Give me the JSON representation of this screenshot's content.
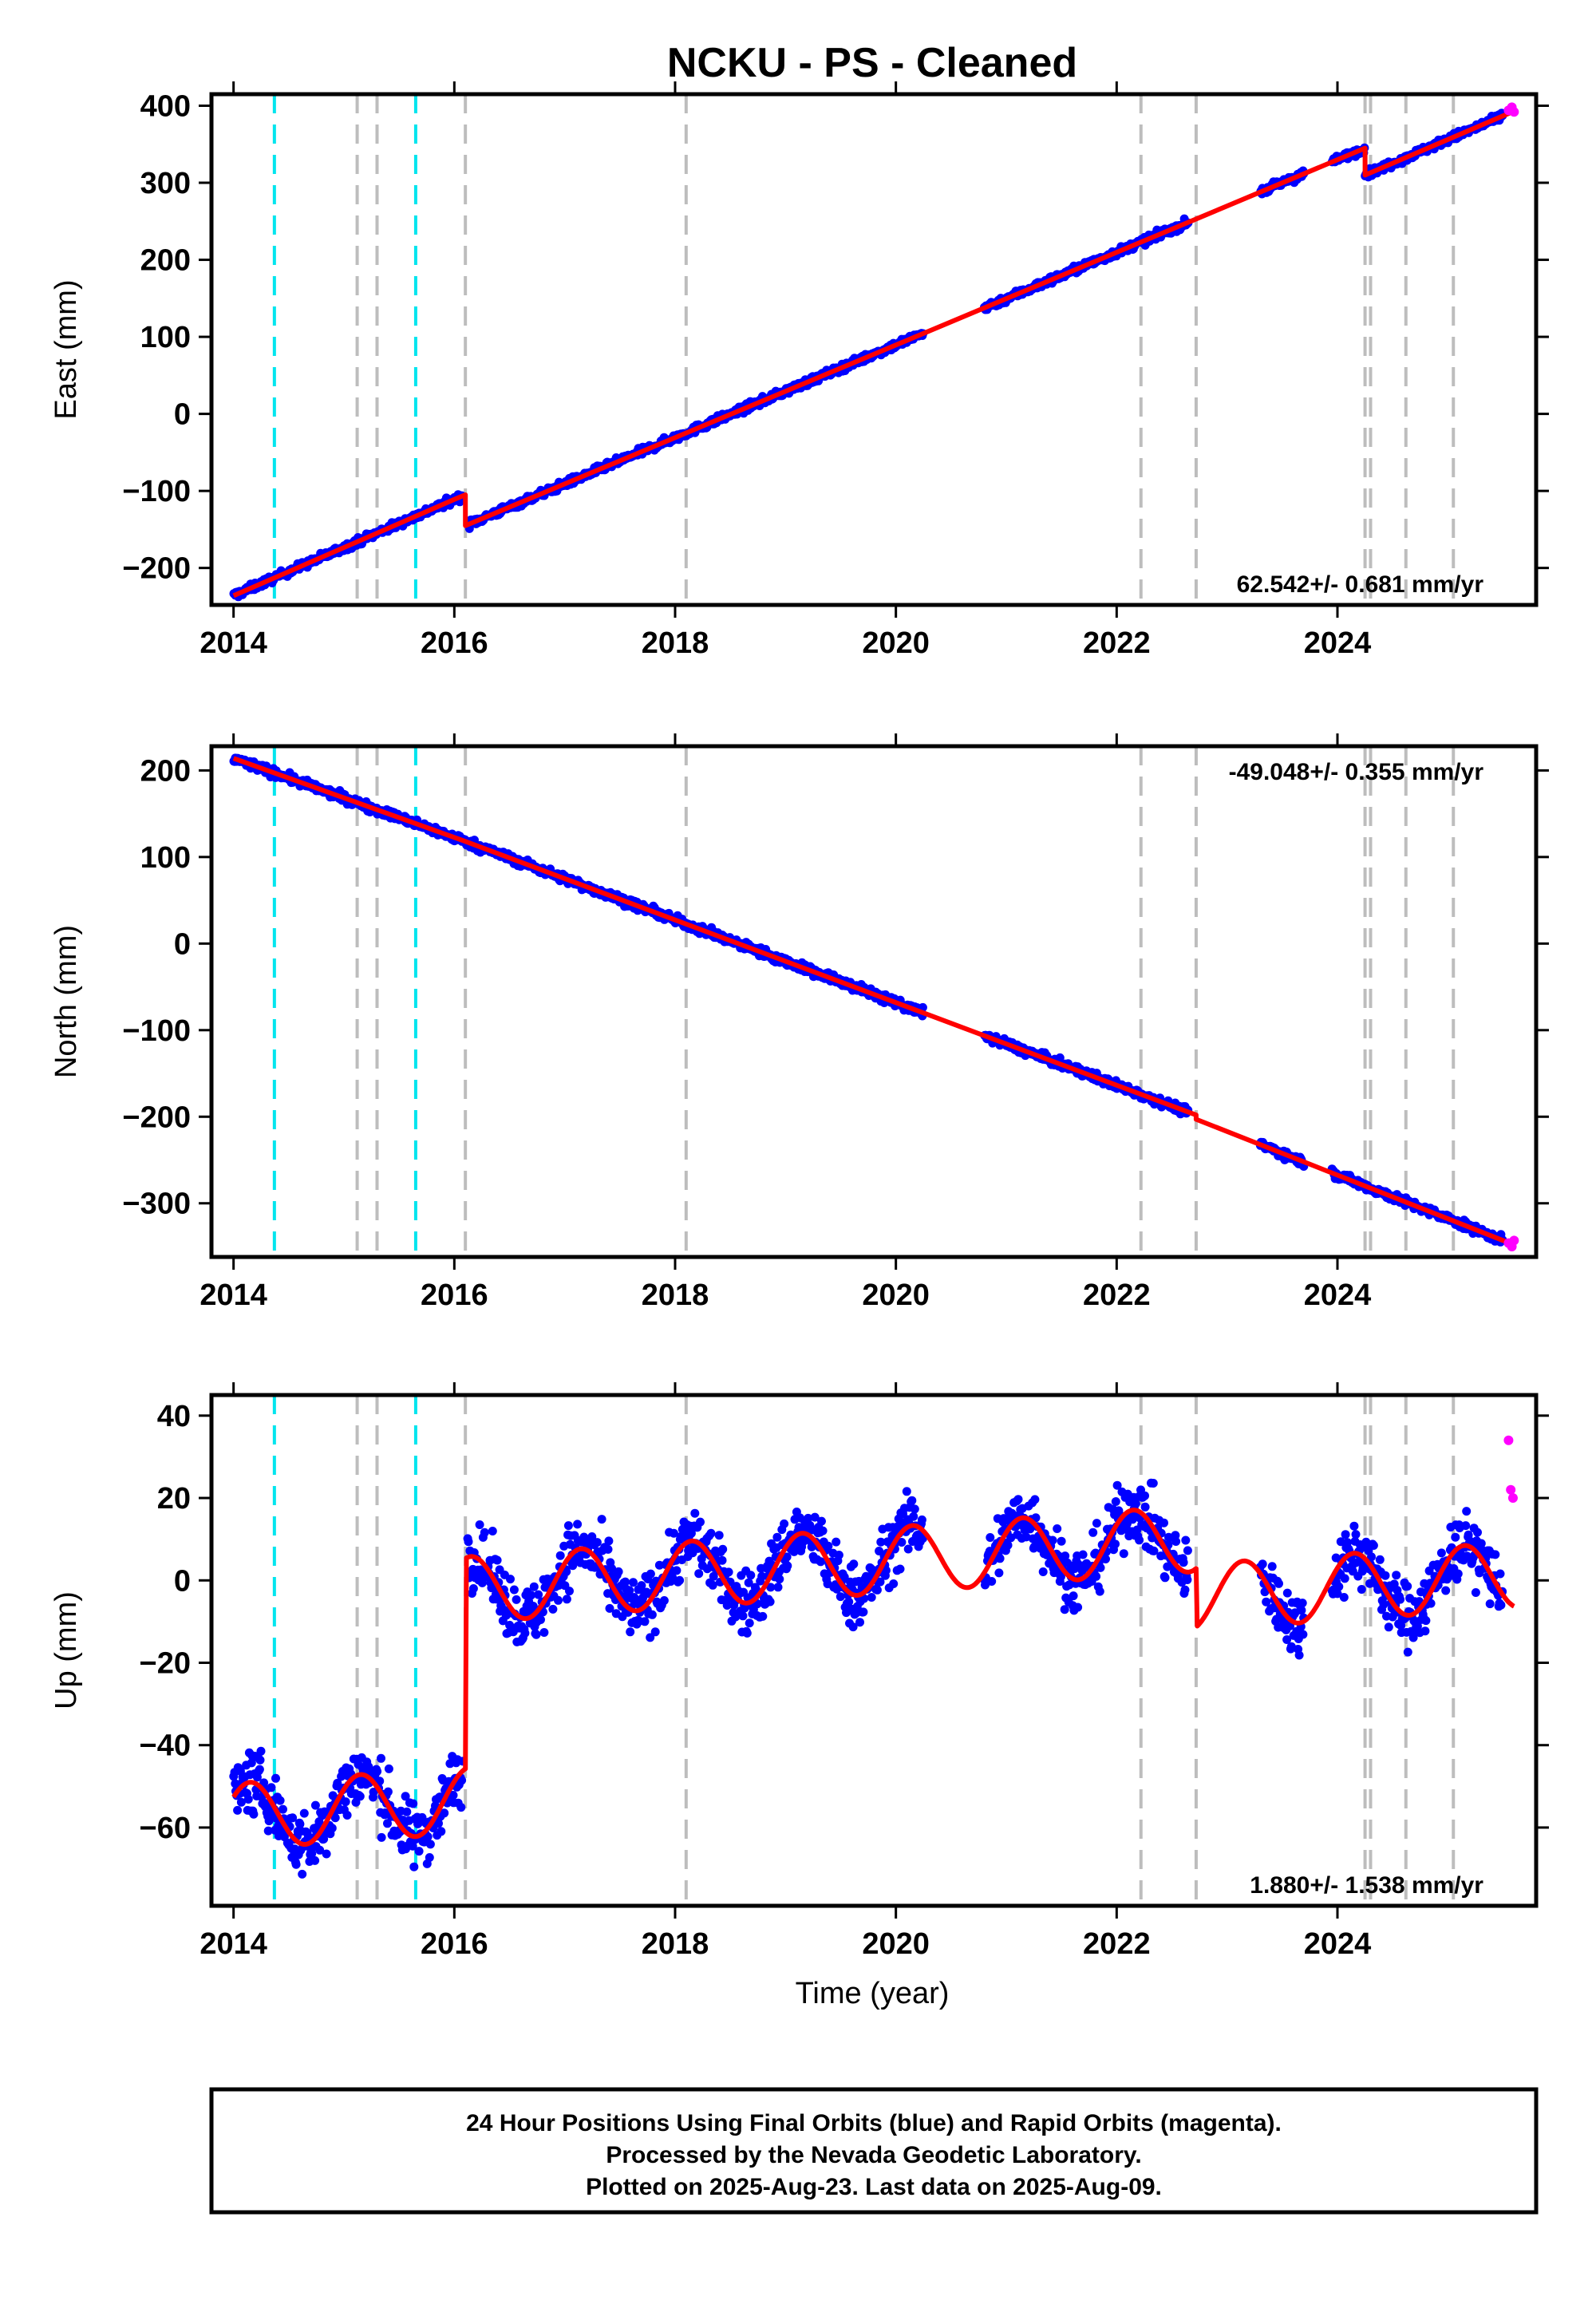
{
  "title": "NCKU  - PS - Cleaned",
  "footer": {
    "lines": [
      "24 Hour Positions Using Final Orbits (blue) and Rapid Orbits (magenta).",
      "Processed by the Nevada Geodetic Laboratory.",
      "Plotted on 2025-Aug-23. Last data on 2025-Aug-09."
    ]
  },
  "colors": {
    "final_orbits": "#0000ff",
    "rapid_orbits": "#ff00ff",
    "model": "#ff0000",
    "equipment_change": "#00e5ee",
    "other_event": "#bdbdbd"
  },
  "chart_data": [
    {
      "type": "scatter",
      "component": "East",
      "ylabel": "East (mm)",
      "xlabel": "",
      "xlim": [
        2013.8,
        2025.8
      ],
      "ylim": [
        -248,
        415
      ],
      "xticks": [
        2014,
        2016,
        2018,
        2020,
        2022,
        2024
      ],
      "yticks": [
        -200,
        -100,
        0,
        100,
        200,
        300,
        400
      ],
      "rate_text": "62.542+/- 0.681 mm/yr",
      "rate_position": "bottom-right",
      "grid": false,
      "events_cyan": [
        2014.37,
        2015.65
      ],
      "events_gray": [
        2015.12,
        2015.3,
        2016.1,
        2018.1,
        2022.22,
        2022.72,
        2024.25,
        2024.3,
        2024.62,
        2025.05
      ],
      "model_line": [
        [
          2014.0,
          -236
        ],
        [
          2016.0,
          -111
        ],
        [
          2016.1,
          -105
        ],
        [
          2016.1,
          -145
        ],
        [
          2024.25,
          345
        ],
        [
          2024.25,
          310
        ],
        [
          2025.6,
          393
        ]
      ],
      "series": [
        {
          "name": "Final orbits",
          "color": "#0000ff",
          "segments": [
            [
              2014.0,
              2016.08,
              0
            ],
            [
              2016.12,
              2020.25,
              2
            ],
            [
              2020.8,
              2022.65,
              4
            ],
            [
              2023.3,
              2023.7,
              5
            ],
            [
              2023.95,
              2024.25,
              6
            ],
            [
              2024.25,
              2025.5,
              7
            ]
          ]
        },
        {
          "name": "Rapid orbits",
          "color": "#ff00ff",
          "points": [
            [
              2025.55,
              394
            ],
            [
              2025.58,
              398
            ],
            [
              2025.6,
              392
            ]
          ]
        }
      ]
    },
    {
      "type": "scatter",
      "component": "North",
      "ylabel": "North (mm)",
      "xlabel": "",
      "xlim": [
        2013.8,
        2025.8
      ],
      "ylim": [
        -362,
        228
      ],
      "xticks": [
        2014,
        2016,
        2018,
        2020,
        2022,
        2024
      ],
      "yticks": [
        -300,
        -200,
        -100,
        0,
        100,
        200
      ],
      "rate_text": "-49.048+/- 0.355 mm/yr",
      "rate_position": "top-right",
      "grid": false,
      "events_cyan": [
        2014.37,
        2015.65
      ],
      "events_gray": [
        2015.12,
        2015.3,
        2016.1,
        2018.1,
        2022.22,
        2022.72,
        2024.25,
        2024.3,
        2024.62,
        2025.05
      ],
      "model_line": [
        [
          2014.0,
          214
        ],
        [
          2016.1,
          118
        ],
        [
          2022.72,
          -198
        ],
        [
          2022.72,
          -203
        ],
        [
          2025.6,
          -348
        ]
      ],
      "series": [
        {
          "name": "Final orbits",
          "color": "#0000ff",
          "segments": [
            [
              2014.0,
              2019.6,
              0
            ],
            [
              2019.1,
              2020.25,
              1
            ],
            [
              2020.8,
              2022.65,
              2
            ],
            [
              2023.3,
              2023.7,
              3
            ],
            [
              2023.95,
              2025.5,
              4
            ]
          ]
        },
        {
          "name": "Rapid orbits",
          "color": "#ff00ff",
          "points": [
            [
              2025.55,
              -346
            ],
            [
              2025.58,
              -350
            ],
            [
              2025.6,
              -343
            ]
          ]
        }
      ]
    },
    {
      "type": "scatter",
      "component": "Up",
      "ylabel": "Up (mm)",
      "xlabel": "Time (year)",
      "xlim": [
        2013.8,
        2025.8
      ],
      "ylim": [
        -79,
        45
      ],
      "xticks": [
        2014,
        2016,
        2018,
        2020,
        2022,
        2024
      ],
      "yticks": [
        -60,
        -40,
        -20,
        0,
        20,
        40
      ],
      "rate_text": "1.880+/- 1.538 mm/yr",
      "rate_position": "bottom-right",
      "grid": false,
      "events_cyan": [
        2014.37,
        2015.65
      ],
      "events_gray": [
        2015.12,
        2015.3,
        2016.1,
        2018.1,
        2022.22,
        2022.72,
        2024.25,
        2024.3,
        2024.62,
        2025.05
      ],
      "model": {
        "segments": [
          [
            2014.0,
            2016.1,
            -57.3,
            1.88,
            8,
            0.4
          ],
          [
            2016.1,
            2022.72,
            -2.3,
            1.88,
            8,
            0.4
          ],
          [
            2022.72,
            2025.6,
            -4.1,
            1.88,
            8,
            0.4
          ]
        ]
      },
      "series": [
        {
          "name": "Final orbits",
          "color": "#0000ff",
          "segments": [
            [
              2014.0,
              2016.08,
              0
            ],
            [
              2016.12,
              2020.25,
              1
            ],
            [
              2020.8,
              2022.65,
              2
            ],
            [
              2023.3,
              2023.7,
              3
            ],
            [
              2023.95,
              2025.5,
              4
            ]
          ],
          "noise": 5.5
        },
        {
          "name": "Rapid orbits",
          "color": "#ff00ff",
          "points": [
            [
              2025.55,
              34
            ],
            [
              2025.57,
              22
            ],
            [
              2025.59,
              20
            ]
          ]
        }
      ]
    }
  ]
}
